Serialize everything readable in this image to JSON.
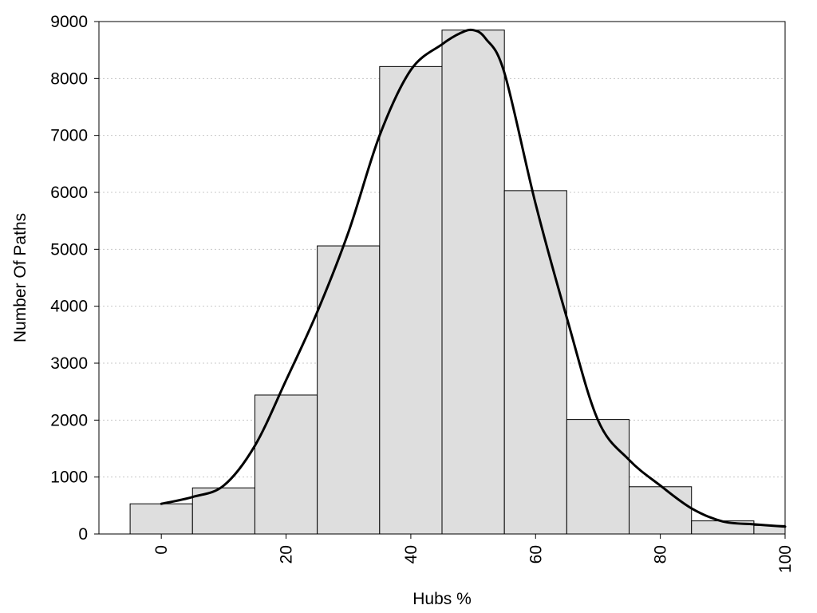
{
  "chart_data": {
    "type": "bar",
    "title": "",
    "xlabel": "Hubs %",
    "ylabel": "Number Of Paths",
    "xlim": [
      -10,
      100
    ],
    "ylim": [
      0,
      9000
    ],
    "x_ticks": [
      0,
      20,
      40,
      60,
      80,
      100
    ],
    "y_ticks": [
      0,
      1000,
      2000,
      3000,
      4000,
      5000,
      6000,
      7000,
      8000,
      9000
    ],
    "grid": "horizontal-dotted",
    "bin_width": 10,
    "bins": [
      {
        "center": 0,
        "count": 530
      },
      {
        "center": 10,
        "count": 810
      },
      {
        "center": 20,
        "count": 2440
      },
      {
        "center": 30,
        "count": 5060
      },
      {
        "center": 40,
        "count": 8210
      },
      {
        "center": 50,
        "count": 8850
      },
      {
        "center": 60,
        "count": 6030
      },
      {
        "center": 70,
        "count": 2010
      },
      {
        "center": 80,
        "count": 830
      },
      {
        "center": 90,
        "count": 230
      },
      {
        "center": 100,
        "count": 150
      }
    ],
    "curve": {
      "x": [
        0,
        5,
        10,
        15,
        20,
        25,
        30,
        35,
        40,
        45,
        48,
        50,
        52,
        55,
        60,
        65,
        70,
        75,
        80,
        85,
        90,
        95,
        100
      ],
      "y": [
        530,
        650,
        850,
        1550,
        2700,
        3900,
        5300,
        7000,
        8150,
        8600,
        8800,
        8850,
        8700,
        8100,
        5800,
        3800,
        2000,
        1300,
        850,
        450,
        220,
        170,
        130
      ]
    }
  }
}
